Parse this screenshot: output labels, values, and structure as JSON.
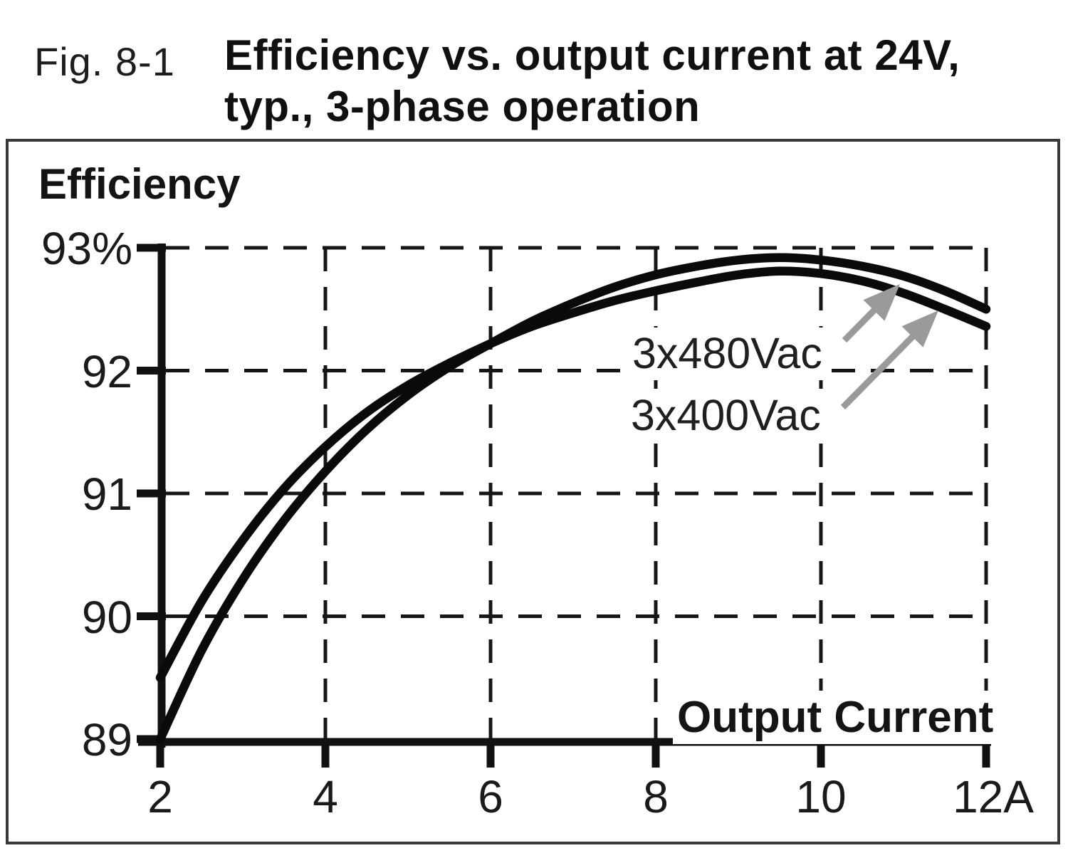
{
  "figure": {
    "label": "Fig. 8-1",
    "title_line1": "Efficiency vs. output current at 24V,",
    "title_line2": "typ., 3-phase operation"
  },
  "chart_data": {
    "type": "line",
    "title": "Efficiency vs. output current at 24V, typ., 3-phase operation",
    "ylabel": "Efficiency",
    "xlabel": "Output Current",
    "y_unit": "%",
    "x_unit": "A",
    "xlim": [
      2,
      12
    ],
    "ylim": [
      89,
      93
    ],
    "grid": "dashed",
    "legend_position": "inside-right",
    "x_ticks": [
      {
        "value": 2,
        "label": "2"
      },
      {
        "value": 4,
        "label": "4"
      },
      {
        "value": 6,
        "label": "6"
      },
      {
        "value": 8,
        "label": "8"
      },
      {
        "value": 10,
        "label": "10"
      },
      {
        "value": 12,
        "label": "12A"
      }
    ],
    "y_ticks": [
      {
        "value": 93,
        "label": "93%"
      },
      {
        "value": 92,
        "label": "92"
      },
      {
        "value": 91,
        "label": "91"
      },
      {
        "value": 90,
        "label": "90"
      },
      {
        "value": 89,
        "label": "89"
      }
    ],
    "series": [
      {
        "name": "3x480Vac",
        "points": [
          [
            2,
            89.0
          ],
          [
            2.5,
            89.72
          ],
          [
            3,
            90.3
          ],
          [
            3.5,
            90.78
          ],
          [
            4,
            91.18
          ],
          [
            4.5,
            91.52
          ],
          [
            5,
            91.8
          ],
          [
            5.5,
            92.03
          ],
          [
            6,
            92.22
          ],
          [
            6.5,
            92.4
          ],
          [
            7,
            92.55
          ],
          [
            7.5,
            92.68
          ],
          [
            8,
            92.78
          ],
          [
            8.5,
            92.85
          ],
          [
            9,
            92.9
          ],
          [
            9.5,
            92.92
          ],
          [
            10,
            92.9
          ],
          [
            10.5,
            92.85
          ],
          [
            11,
            92.77
          ],
          [
            11.5,
            92.65
          ],
          [
            12,
            92.5
          ]
        ]
      },
      {
        "name": "3x400Vac",
        "points": [
          [
            2,
            89.5
          ],
          [
            2.5,
            90.12
          ],
          [
            3,
            90.62
          ],
          [
            3.5,
            91.04
          ],
          [
            4,
            91.38
          ],
          [
            4.5,
            91.66
          ],
          [
            5,
            91.88
          ],
          [
            5.5,
            92.06
          ],
          [
            6,
            92.22
          ],
          [
            6.5,
            92.36
          ],
          [
            7,
            92.47
          ],
          [
            7.5,
            92.57
          ],
          [
            8,
            92.65
          ],
          [
            8.5,
            92.72
          ],
          [
            9,
            92.78
          ],
          [
            9.5,
            92.81
          ],
          [
            10,
            92.79
          ],
          [
            10.5,
            92.73
          ],
          [
            11,
            92.63
          ],
          [
            11.5,
            92.5
          ],
          [
            12,
            92.36
          ]
        ]
      }
    ],
    "colors": {
      "curve": "#0a0a0a",
      "axis": "#111111",
      "grid": "#161616",
      "arrow": "#9a9a9a"
    }
  }
}
